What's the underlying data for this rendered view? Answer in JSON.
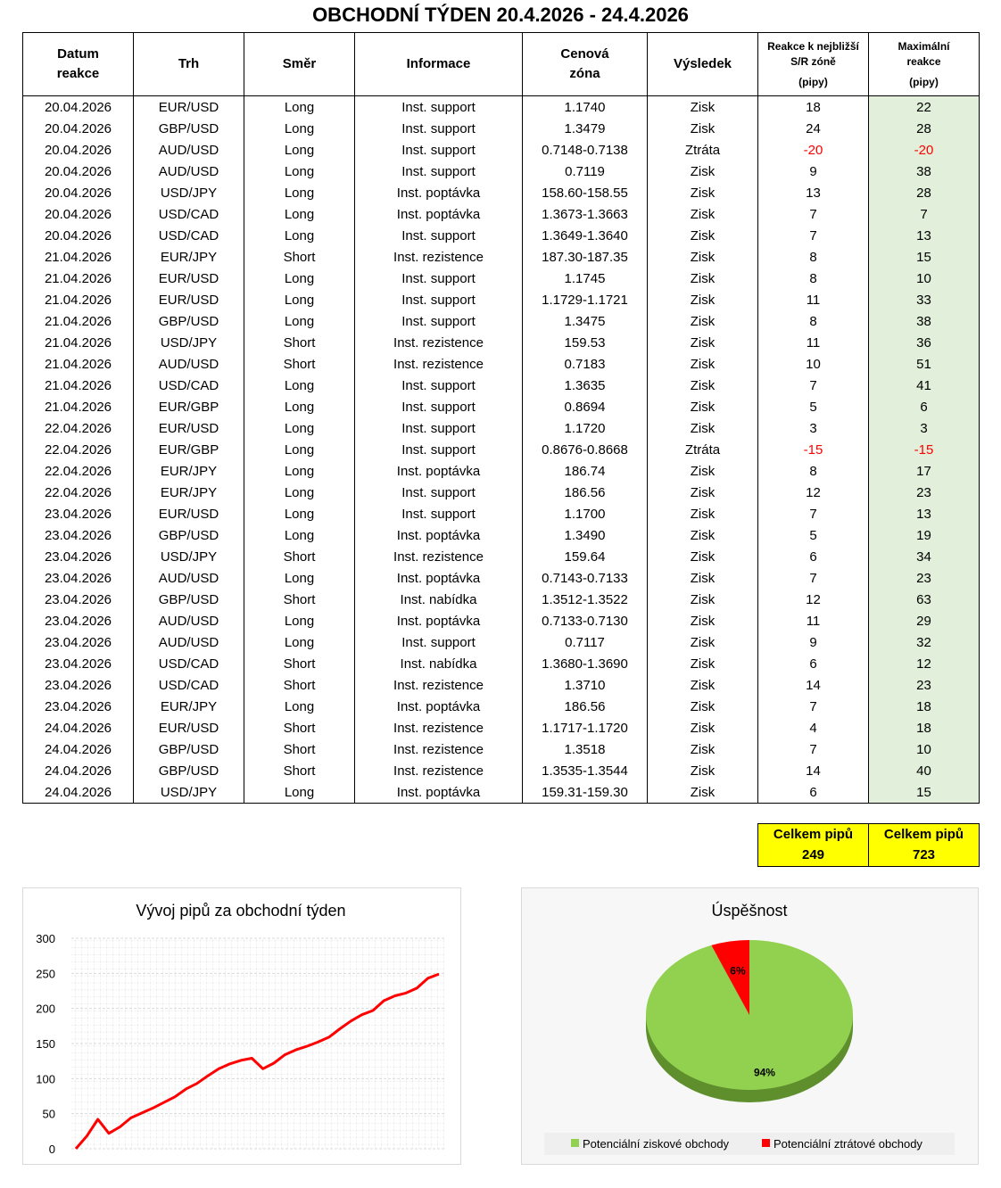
{
  "title": "OBCHODNÍ TÝDEN 20.4.2026 - 24.4.2026",
  "table": {
    "header": [
      [
        "Datum",
        "reakce"
      ],
      [
        "Trh"
      ],
      [
        "Směr"
      ],
      [
        "Informace"
      ],
      [
        "Cenová",
        "zóna"
      ],
      [
        "Výsledek"
      ],
      [
        "Reakce k nejbližší",
        "S/R zóně",
        "(pipy)"
      ],
      [
        "Maximální",
        "reakce",
        "(pipy)"
      ]
    ],
    "rows": [
      [
        "20.04.2026",
        "EUR/USD",
        "Long",
        "Inst. support",
        "1.1740",
        "Zisk",
        18,
        22
      ],
      [
        "20.04.2026",
        "GBP/USD",
        "Long",
        "Inst. support",
        "1.3479",
        "Zisk",
        24,
        28
      ],
      [
        "20.04.2026",
        "AUD/USD",
        "Long",
        "Inst. support",
        "0.7148-0.7138",
        "Ztráta",
        -20,
        -20
      ],
      [
        "20.04.2026",
        "AUD/USD",
        "Long",
        "Inst. support",
        "0.7119",
        "Zisk",
        9,
        38
      ],
      [
        "20.04.2026",
        "USD/JPY",
        "Long",
        "Inst. poptávka",
        "158.60-158.55",
        "Zisk",
        13,
        28
      ],
      [
        "20.04.2026",
        "USD/CAD",
        "Long",
        "Inst. poptávka",
        "1.3673-1.3663",
        "Zisk",
        7,
        7
      ],
      [
        "20.04.2026",
        "USD/CAD",
        "Long",
        "Inst. support",
        "1.3649-1.3640",
        "Zisk",
        7,
        13
      ],
      [
        "21.04.2026",
        "EUR/JPY",
        "Short",
        "Inst. rezistence",
        "187.30-187.35",
        "Zisk",
        8,
        15
      ],
      [
        "21.04.2026",
        "EUR/USD",
        "Long",
        "Inst. support",
        "1.1745",
        "Zisk",
        8,
        10
      ],
      [
        "21.04.2026",
        "EUR/USD",
        "Long",
        "Inst. support",
        "1.1729-1.1721",
        "Zisk",
        11,
        33
      ],
      [
        "21.04.2026",
        "GBP/USD",
        "Long",
        "Inst. support",
        "1.3475",
        "Zisk",
        8,
        38
      ],
      [
        "21.04.2026",
        "USD/JPY",
        "Short",
        "Inst. rezistence",
        "159.53",
        "Zisk",
        11,
        36
      ],
      [
        "21.04.2026",
        "AUD/USD",
        "Short",
        "Inst. rezistence",
        "0.7183",
        "Zisk",
        10,
        51
      ],
      [
        "21.04.2026",
        "USD/CAD",
        "Long",
        "Inst. support",
        "1.3635",
        "Zisk",
        7,
        41
      ],
      [
        "21.04.2026",
        "EUR/GBP",
        "Long",
        "Inst. support",
        "0.8694",
        "Zisk",
        5,
        6
      ],
      [
        "22.04.2026",
        "EUR/USD",
        "Long",
        "Inst. support",
        "1.1720",
        "Zisk",
        3,
        3
      ],
      [
        "22.04.2026",
        "EUR/GBP",
        "Long",
        "Inst. support",
        "0.8676-0.8668",
        "Ztráta",
        -15,
        -15
      ],
      [
        "22.04.2026",
        "EUR/JPY",
        "Long",
        "Inst. poptávka",
        "186.74",
        "Zisk",
        8,
        17
      ],
      [
        "22.04.2026",
        "EUR/JPY",
        "Long",
        "Inst. support",
        "186.56",
        "Zisk",
        12,
        23
      ],
      [
        "23.04.2026",
        "EUR/USD",
        "Long",
        "Inst. support",
        "1.1700",
        "Zisk",
        7,
        13
      ],
      [
        "23.04.2026",
        "GBP/USD",
        "Long",
        "Inst. poptávka",
        "1.3490",
        "Zisk",
        5,
        19
      ],
      [
        "23.04.2026",
        "USD/JPY",
        "Short",
        "Inst. rezistence",
        "159.64",
        "Zisk",
        6,
        34
      ],
      [
        "23.04.2026",
        "AUD/USD",
        "Long",
        "Inst. poptávka",
        "0.7143-0.7133",
        "Zisk",
        7,
        23
      ],
      [
        "23.04.2026",
        "GBP/USD",
        "Short",
        "Inst. nabídka",
        "1.3512-1.3522",
        "Zisk",
        12,
        63
      ],
      [
        "23.04.2026",
        "AUD/USD",
        "Long",
        "Inst. poptávka",
        "0.7133-0.7130",
        "Zisk",
        11,
        29
      ],
      [
        "23.04.2026",
        "AUD/USD",
        "Long",
        "Inst. support",
        "0.7117",
        "Zisk",
        9,
        32
      ],
      [
        "23.04.2026",
        "USD/CAD",
        "Short",
        "Inst. nabídka",
        "1.3680-1.3690",
        "Zisk",
        6,
        12
      ],
      [
        "23.04.2026",
        "USD/CAD",
        "Short",
        "Inst. rezistence",
        "1.3710",
        "Zisk",
        14,
        23
      ],
      [
        "23.04.2026",
        "EUR/JPY",
        "Long",
        "Inst. poptávka",
        "186.56",
        "Zisk",
        7,
        18
      ],
      [
        "24.04.2026",
        "EUR/USD",
        "Short",
        "Inst. rezistence",
        "1.1717-1.1720",
        "Zisk",
        4,
        18
      ],
      [
        "24.04.2026",
        "GBP/USD",
        "Short",
        "Inst. rezistence",
        "1.3518",
        "Zisk",
        7,
        10
      ],
      [
        "24.04.2026",
        "GBP/USD",
        "Short",
        "Inst. rezistence",
        "1.3535-1.3544",
        "Zisk",
        14,
        40
      ],
      [
        "24.04.2026",
        "USD/JPY",
        "Long",
        "Inst. poptávka",
        "159.31-159.30",
        "Zisk",
        6,
        15
      ]
    ]
  },
  "totals": [
    {
      "label": "Celkem pipů",
      "value": 249
    },
    {
      "label": "Celkem pipů",
      "value": 723
    }
  ],
  "chart_data": [
    {
      "type": "line",
      "title": "Vývoj pipů za obchodní týden",
      "color": "#ff0000",
      "values": [
        0,
        18,
        42,
        22,
        31,
        44,
        51,
        58,
        66,
        74,
        85,
        93,
        104,
        114,
        121,
        126,
        129,
        114,
        122,
        134,
        141,
        146,
        152,
        159,
        171,
        182,
        191,
        197,
        211,
        218,
        222,
        229,
        243,
        249
      ],
      "ylim": [
        0,
        300
      ],
      "yticks": [
        0,
        50,
        100,
        150,
        200,
        250,
        300
      ],
      "grid": true
    },
    {
      "type": "pie",
      "title": "Úspěšnost",
      "categories": [
        "Potenciální ziskové obchody",
        "Potenciální ztrátové obchody"
      ],
      "values": [
        94,
        6
      ],
      "value_labels": [
        "94%",
        "6%"
      ],
      "colors": [
        "#92d050",
        "#ff0000"
      ],
      "legend": "bottom"
    }
  ]
}
